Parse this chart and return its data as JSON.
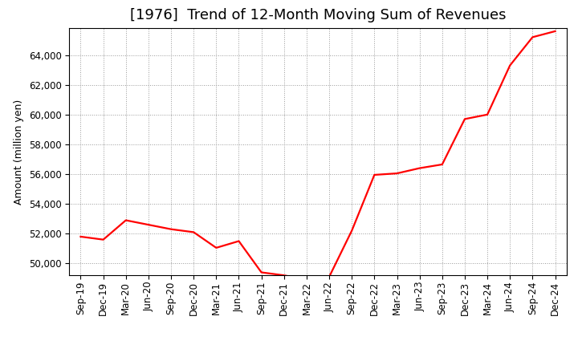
{
  "title": "[1976]  Trend of 12-Month Moving Sum of Revenues",
  "ylabel": "Amount (million yen)",
  "line_color": "#ff0000",
  "background_color": "#ffffff",
  "plot_bg_color": "#ffffff",
  "grid_color": "#999999",
  "x_labels": [
    "Sep-19",
    "Dec-19",
    "Mar-20",
    "Jun-20",
    "Sep-20",
    "Dec-20",
    "Mar-21",
    "Jun-21",
    "Sep-21",
    "Dec-21",
    "Mar-22",
    "Jun-22",
    "Sep-22",
    "Dec-22",
    "Mar-23",
    "Jun-23",
    "Sep-23",
    "Dec-23",
    "Mar-24",
    "Jun-24",
    "Sep-24",
    "Dec-24"
  ],
  "y_values": [
    51800,
    51600,
    52900,
    52600,
    52300,
    52100,
    51050,
    51500,
    49400,
    49200,
    48900,
    49100,
    52200,
    55950,
    56050,
    56400,
    56650,
    59700,
    60000,
    63300,
    65200,
    65600
  ],
  "ylim_min": 49200,
  "ylim_max": 65800,
  "yticks": [
    50000,
    52000,
    54000,
    56000,
    58000,
    60000,
    62000,
    64000
  ],
  "title_fontsize": 13,
  "label_fontsize": 9,
  "tick_fontsize": 8.5,
  "line_width": 1.6
}
